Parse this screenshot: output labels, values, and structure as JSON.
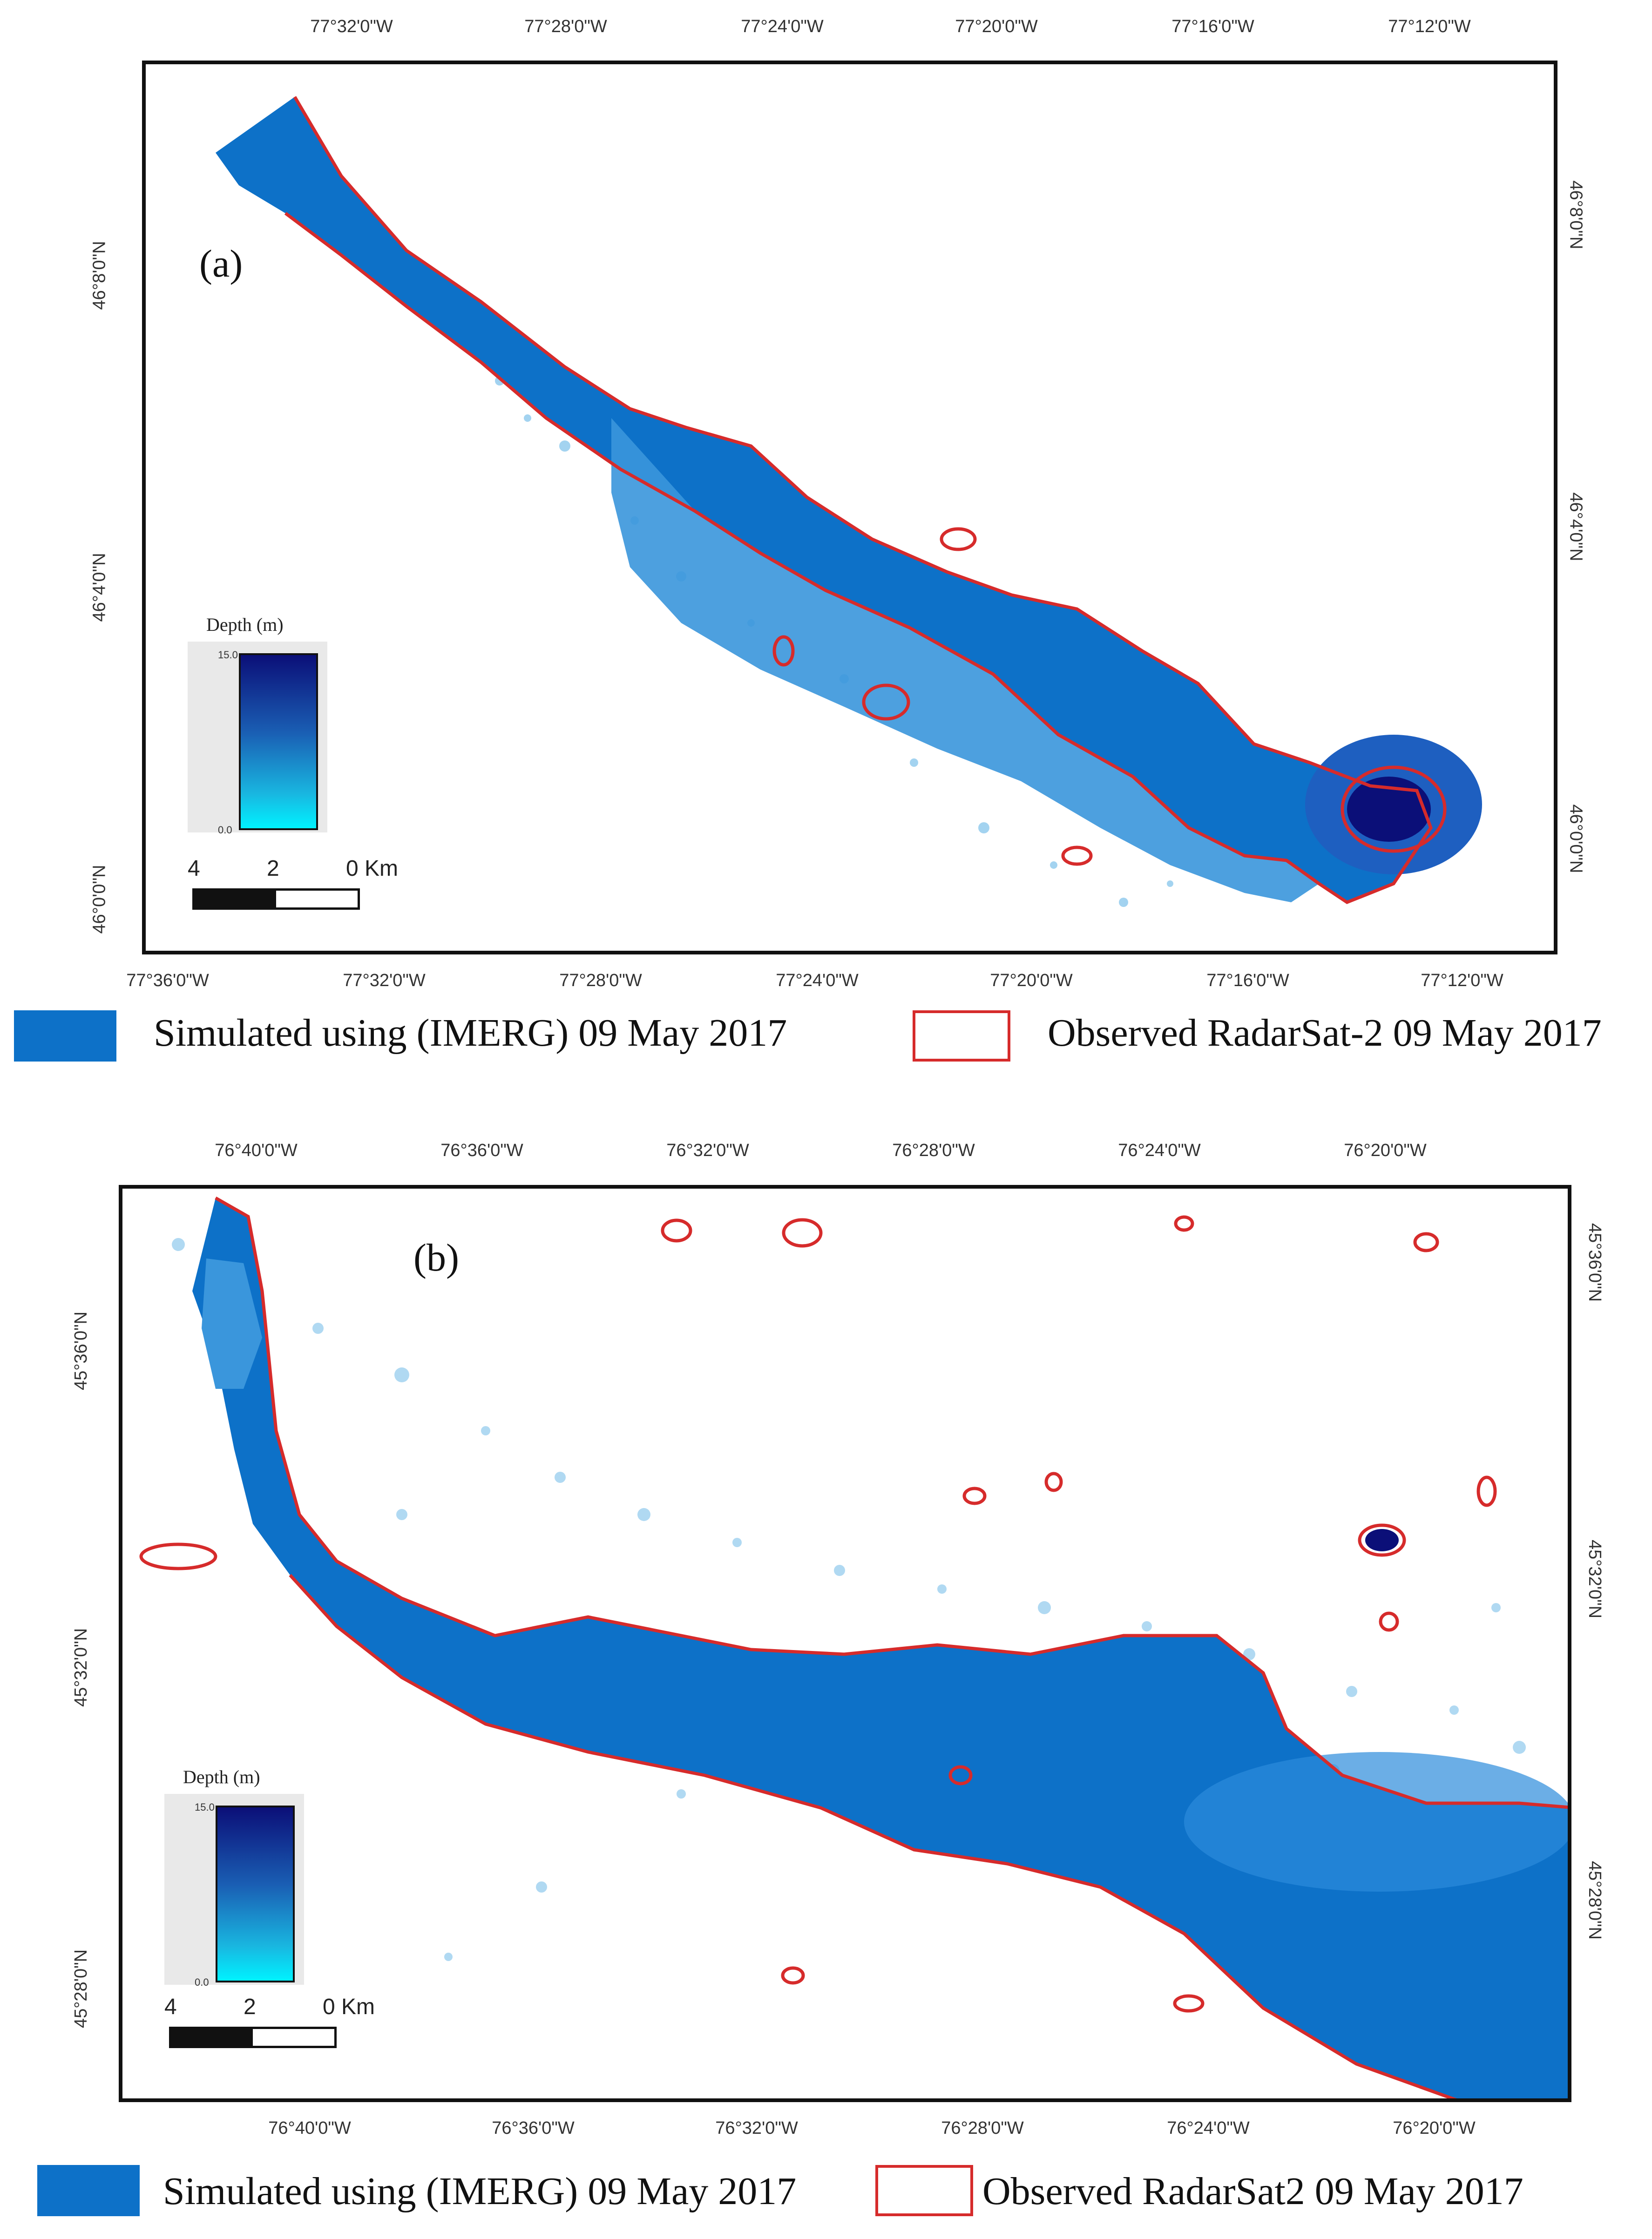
{
  "panel_a": {
    "label": "(a)",
    "top_ticks": [
      "77°32'0\"W",
      "77°28'0\"W",
      "77°24'0\"W",
      "77°20'0\"W",
      "77°16'0\"W",
      "77°12'0\"W"
    ],
    "bottom_ticks": [
      "77°36'0\"W",
      "77°32'0\"W",
      "77°28'0\"W",
      "77°24'0\"W",
      "77°20'0\"W",
      "77°16'0\"W",
      "77°12'0\"W"
    ],
    "left_ticks": [
      "46°8'0\"N",
      "46°4'0\"N",
      "46°0'0\"N"
    ],
    "right_ticks": [
      "46°8'0\"N",
      "46°4'0\"N",
      "46°0'0\"N"
    ],
    "depth_legend": {
      "title": "Depth (m)",
      "max": "15.0",
      "min": "0.0"
    },
    "scale_bar": {
      "labels": [
        "4",
        "2",
        "0 Km"
      ]
    },
    "legend": {
      "simulated": "Simulated  using  (IMERG)  09  May  2017",
      "observed": "Observed RadarSat-2 09 May 2017"
    }
  },
  "panel_b": {
    "label": "(b)",
    "top_ticks": [
      "76°40'0\"W",
      "76°36'0\"W",
      "76°32'0\"W",
      "76°28'0\"W",
      "76°24'0\"W",
      "76°20'0\"W"
    ],
    "bottom_ticks": [
      "76°40'0\"W",
      "76°36'0\"W",
      "76°32'0\"W",
      "76°28'0\"W",
      "76°24'0\"W",
      "76°20'0\"W"
    ],
    "left_ticks": [
      "45°36'0\"N",
      "45°32'0\"N",
      "45°28'0\"N"
    ],
    "right_ticks": [
      "45°36'0\"N",
      "45°32'0\"N",
      "45°28'0\"N"
    ],
    "depth_legend": {
      "title": "Depth (m)",
      "max": "15.0",
      "min": "0.0"
    },
    "scale_bar": {
      "labels": [
        "4",
        "2",
        "0 Km"
      ]
    },
    "legend": {
      "simulated": "Simulated using (IMERG) 09 May 2017",
      "observed": "Observed RadarSat2 09 May 2017"
    }
  },
  "colors": {
    "water_fill": "#0d71c8",
    "deep_water": "#0b0f78",
    "observed_outline": "#d62b2b",
    "scatter_water": "#6fb6e6"
  }
}
